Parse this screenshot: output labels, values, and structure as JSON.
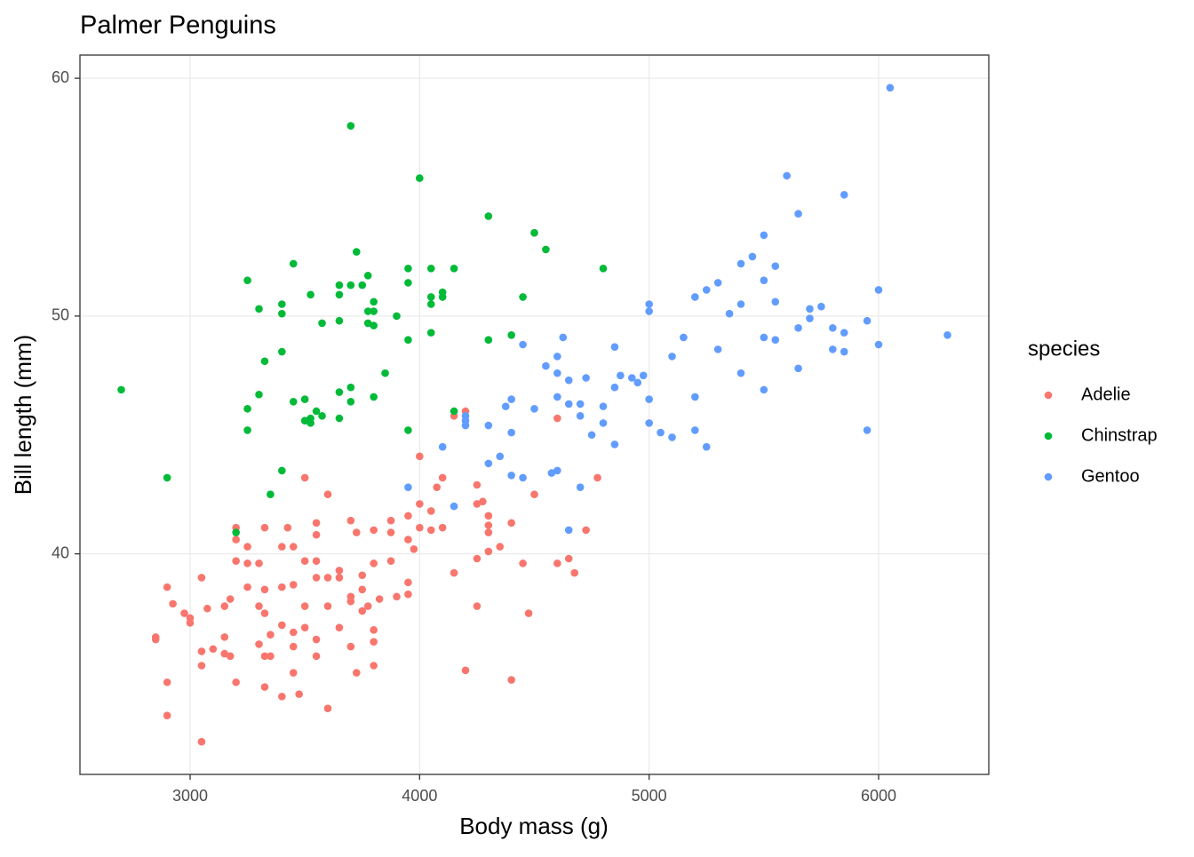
{
  "chart_data": {
    "type": "scatter",
    "title": "Palmer Penguins",
    "x_label": "Body mass (g)",
    "y_label": "Bill length (mm)",
    "legend_title": "species",
    "legend_position": "right",
    "grid": true,
    "xlim": [
      2520,
      6480
    ],
    "xticks": [
      3000,
      4000,
      5000,
      6000
    ],
    "ylim": [
      30.725,
      60.975
    ],
    "yticks": [
      40,
      50,
      60
    ],
    "series": [
      {
        "name": "Adelie",
        "color": "#F8766D",
        "x": [
          2900,
          2900,
          2900,
          2850,
          2850,
          2925,
          2975,
          3000,
          3000,
          3050,
          3050,
          3050,
          3050,
          3075,
          3100,
          3150,
          3150,
          3150,
          3175,
          3175,
          3200,
          3200,
          3200,
          3200,
          3250,
          3250,
          3250,
          3300,
          3300,
          3300,
          3325,
          3325,
          3325,
          3325,
          3325,
          3350,
          3350,
          3400,
          3400,
          3400,
          3400,
          3425,
          3450,
          3450,
          3450,
          3450,
          3450,
          3475,
          3500,
          3500,
          3500,
          3500,
          3550,
          3550,
          3550,
          3550,
          3550,
          3550,
          3600,
          3600,
          3600,
          3600,
          3650,
          3650,
          3650,
          3700,
          3700,
          3700,
          3700,
          3725,
          3725,
          3750,
          3750,
          3750,
          3775,
          3800,
          3800,
          3800,
          3800,
          3800,
          3825,
          3875,
          3875,
          3875,
          3900,
          3950,
          3950,
          3950,
          3950,
          3975,
          4000,
          4000,
          4000,
          4050,
          4050,
          4075,
          4100,
          4100,
          4150,
          4150,
          4200,
          4200,
          4250,
          4250,
          4250,
          4250,
          4275,
          4300,
          4300,
          4300,
          4300,
          4350,
          4400,
          4400,
          4450,
          4475,
          4500,
          4600,
          4600,
          4650,
          4675,
          4725,
          4775
        ],
        "values": [
          38.6,
          34.6,
          33.2,
          36.5,
          36.4,
          37.9,
          37.5,
          37.3,
          37.1,
          39.0,
          35.9,
          35.3,
          32.1,
          37.7,
          36.0,
          37.8,
          36.5,
          35.8,
          38.1,
          35.7,
          41.1,
          40.6,
          39.7,
          34.6,
          40.3,
          39.6,
          38.6,
          39.6,
          37.8,
          36.2,
          41.1,
          38.5,
          37.5,
          35.7,
          34.4,
          36.6,
          35.7,
          40.3,
          38.6,
          37.0,
          34.0,
          41.1,
          40.3,
          38.7,
          36.7,
          36.1,
          35.0,
          34.1,
          43.2,
          39.7,
          37.8,
          36.9,
          41.3,
          40.8,
          39.7,
          39.0,
          35.7,
          36.4,
          42.5,
          39.0,
          37.8,
          33.5,
          39.0,
          39.3,
          36.9,
          41.4,
          38.2,
          36.1,
          38.0,
          40.9,
          35.0,
          39.1,
          38.5,
          37.6,
          37.8,
          41.0,
          39.6,
          36.8,
          36.3,
          35.3,
          38.1,
          41.4,
          40.9,
          39.7,
          38.2,
          41.6,
          40.6,
          38.8,
          38.3,
          40.2,
          44.1,
          42.1,
          41.1,
          41.8,
          41.0,
          42.8,
          43.2,
          41.1,
          45.8,
          39.2,
          46.0,
          35.1,
          42.9,
          42.1,
          39.8,
          37.8,
          42.2,
          41.6,
          41.2,
          40.9,
          40.1,
          40.3,
          41.3,
          34.7,
          39.6,
          37.5,
          42.5,
          45.7,
          39.6,
          39.8,
          39.2,
          41.0,
          43.2
        ]
      },
      {
        "name": "Chinstrap",
        "color": "#00BA38",
        "x": [
          2700,
          2900,
          3200,
          3250,
          3250,
          3250,
          3300,
          3300,
          3325,
          3350,
          3400,
          3400,
          3400,
          3400,
          3450,
          3450,
          3500,
          3500,
          3525,
          3525,
          3525,
          3550,
          3575,
          3575,
          3650,
          3650,
          3650,
          3650,
          3650,
          3700,
          3700,
          3700,
          3700,
          3725,
          3750,
          3775,
          3775,
          3775,
          3800,
          3800,
          3800,
          3800,
          3850,
          3900,
          3950,
          3950,
          3950,
          3950,
          4000,
          4050,
          4050,
          4050,
          4050,
          4100,
          4100,
          4150,
          4150,
          4300,
          4300,
          4400,
          4450,
          4500,
          4550,
          4800
        ],
        "values": [
          46.9,
          43.2,
          40.9,
          51.5,
          45.2,
          46.1,
          50.3,
          46.7,
          48.1,
          42.5,
          50.5,
          50.1,
          48.5,
          43.5,
          52.2,
          46.4,
          46.5,
          45.6,
          45.5,
          45.7,
          50.9,
          46.0,
          49.7,
          45.8,
          49.8,
          46.8,
          45.7,
          51.3,
          50.9,
          58.0,
          51.3,
          47.0,
          46.4,
          52.7,
          51.3,
          51.7,
          49.7,
          50.2,
          50.6,
          50.2,
          49.6,
          46.6,
          47.6,
          50.0,
          52.0,
          51.4,
          49.0,
          45.2,
          55.8,
          52.0,
          50.8,
          50.5,
          49.3,
          51.0,
          50.8,
          52.0,
          46.0,
          54.2,
          49.0,
          49.2,
          50.8,
          53.5,
          52.8,
          52.0
        ]
      },
      {
        "name": "Gentoo",
        "color": "#619CFF",
        "x": [
          3950,
          4100,
          4150,
          4200,
          4200,
          4200,
          4300,
          4300,
          4350,
          4375,
          4400,
          4400,
          4400,
          4450,
          4450,
          4500,
          4550,
          4575,
          4600,
          4600,
          4600,
          4600,
          4625,
          4650,
          4650,
          4650,
          4700,
          4700,
          4700,
          4725,
          4750,
          4800,
          4800,
          4850,
          4850,
          4850,
          4875,
          4925,
          4950,
          4975,
          5000,
          5000,
          5000,
          5000,
          5050,
          5100,
          5100,
          5150,
          5200,
          5200,
          5200,
          5250,
          5250,
          5300,
          5300,
          5350,
          5400,
          5400,
          5400,
          5450,
          5500,
          5500,
          5500,
          5500,
          5550,
          5550,
          5550,
          5600,
          5650,
          5650,
          5650,
          5700,
          5700,
          5750,
          5800,
          5800,
          5850,
          5850,
          5850,
          5950,
          5950,
          6000,
          6000,
          6050,
          6300
        ],
        "values": [
          42.8,
          44.5,
          42.0,
          45.8,
          45.6,
          45.4,
          45.4,
          43.8,
          44.1,
          46.2,
          46.5,
          45.1,
          43.3,
          48.8,
          43.2,
          46.1,
          47.9,
          43.4,
          48.3,
          47.6,
          46.6,
          43.5,
          49.1,
          47.3,
          46.3,
          41.0,
          46.3,
          45.8,
          42.8,
          47.4,
          45.0,
          46.2,
          45.5,
          48.7,
          47.0,
          44.6,
          47.5,
          47.4,
          47.2,
          47.5,
          50.5,
          50.2,
          46.5,
          45.5,
          45.1,
          48.3,
          44.9,
          49.1,
          50.8,
          46.6,
          45.2,
          51.1,
          44.5,
          51.4,
          48.6,
          50.1,
          52.2,
          50.5,
          47.6,
          52.5,
          53.4,
          51.5,
          49.1,
          46.9,
          52.1,
          50.6,
          49.0,
          55.9,
          54.3,
          49.5,
          47.8,
          50.3,
          49.9,
          50.4,
          49.5,
          48.6,
          55.1,
          49.3,
          48.5,
          49.8,
          45.2,
          51.1,
          48.8,
          59.6,
          49.2
        ]
      }
    ]
  }
}
